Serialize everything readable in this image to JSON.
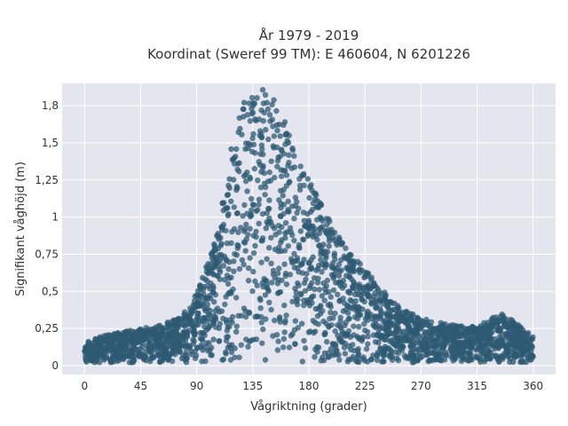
{
  "chart_data": {
    "type": "scatter",
    "title": "År 1979 - 2019",
    "subtitle": "Koordinat (Sweref 99 TM): E 460604, N 6201226",
    "xlabel": "Vågriktning (grader)",
    "ylabel": "Signifikant våghöjd (m)",
    "xlim": [
      -18,
      378
    ],
    "ylim": [
      -0.06,
      1.9
    ],
    "x_ticks": [
      0,
      45,
      90,
      135,
      180,
      225,
      270,
      315,
      360
    ],
    "x_tick_labels": [
      "0",
      "45",
      "90",
      "135",
      "180",
      "225",
      "270",
      "315",
      "360"
    ],
    "y_ticks": [
      0,
      0.25,
      0.5,
      0.75,
      1,
      1.25,
      1.5,
      1.75
    ],
    "y_tick_labels": [
      "0",
      "0,25",
      "0,5",
      "0,75",
      "1",
      "1,25",
      "1,5",
      "1,8"
    ],
    "grid": true,
    "legend": "none",
    "series": [
      {
        "envelope": [
          {
            "x": 0,
            "y": 0.16
          },
          {
            "x": 15,
            "y": 0.2
          },
          {
            "x": 30,
            "y": 0.23
          },
          {
            "x": 45,
            "y": 0.25
          },
          {
            "x": 60,
            "y": 0.27
          },
          {
            "x": 75,
            "y": 0.32
          },
          {
            "x": 85,
            "y": 0.4
          },
          {
            "x": 95,
            "y": 0.6
          },
          {
            "x": 105,
            "y": 0.85
          },
          {
            "x": 112,
            "y": 1.2
          },
          {
            "x": 118,
            "y": 1.5
          },
          {
            "x": 125,
            "y": 1.75
          },
          {
            "x": 132,
            "y": 1.85
          },
          {
            "x": 142,
            "y": 1.86
          },
          {
            "x": 150,
            "y": 1.85
          },
          {
            "x": 158,
            "y": 1.7
          },
          {
            "x": 168,
            "y": 1.5
          },
          {
            "x": 180,
            "y": 1.25
          },
          {
            "x": 195,
            "y": 1.0
          },
          {
            "x": 210,
            "y": 0.8
          },
          {
            "x": 225,
            "y": 0.65
          },
          {
            "x": 240,
            "y": 0.5
          },
          {
            "x": 255,
            "y": 0.38
          },
          {
            "x": 270,
            "y": 0.32
          },
          {
            "x": 290,
            "y": 0.28
          },
          {
            "x": 315,
            "y": 0.26
          },
          {
            "x": 335,
            "y": 0.36
          },
          {
            "x": 360,
            "y": 0.2
          }
        ],
        "baseline_min_y": 0.02,
        "color": "#2e5a73"
      }
    ]
  },
  "colors": {
    "plot_background": "#e5e5ef",
    "grid": "#ffffff",
    "marker": "#2e5a73"
  }
}
